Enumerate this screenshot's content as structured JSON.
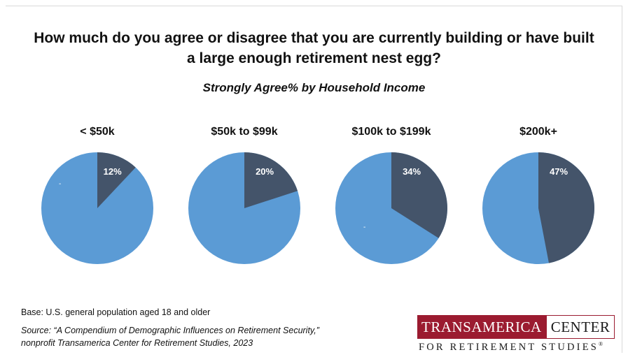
{
  "chart_data": {
    "type": "pie",
    "title_line1": "How much do you agree or disagree that you are currently building or have built",
    "title_line2": "a large enough retirement nest egg?",
    "subtitle": "Strongly Agree% by Household Income",
    "pies": [
      {
        "label": "< $50k",
        "value": 12,
        "value_label": "12%",
        "stray_mark": "-"
      },
      {
        "label": "$50k to $99k",
        "value": 20,
        "value_label": "20%",
        "stray_mark": ""
      },
      {
        "label": "$100k to $199k",
        "value": 34,
        "value_label": "34%",
        "stray_mark": "-"
      },
      {
        "label": "$200k+",
        "value": 47,
        "value_label": "47%",
        "stray_mark": ""
      }
    ],
    "colors": {
      "strongly_agree": "#44546a",
      "other": "#5b9bd5"
    }
  },
  "footer": {
    "base": "Base: U.S. general population aged 18 and older",
    "source_line1": "Source: “A Compendium of Demographic Influences on Retirement Security,”",
    "source_line2": "nonprofit Transamerica Center for Retirement Studies, 2023"
  },
  "logo": {
    "word1": "TRANSAMERICA",
    "word2": "CENTER",
    "tagline": "FOR RETIREMENT STUDIES",
    "mark": "®"
  }
}
